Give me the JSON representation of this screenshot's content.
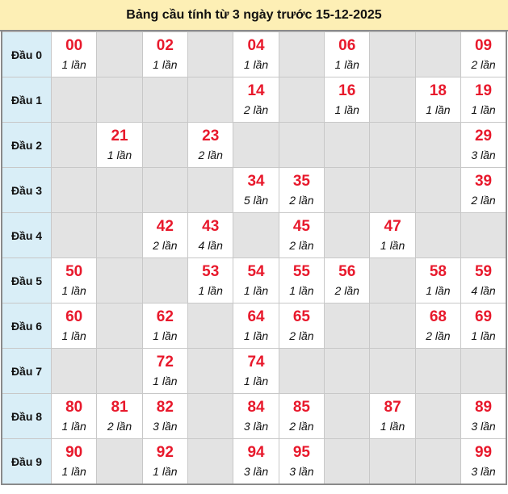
{
  "title": "Bảng cầu tính từ 3 ngày trước 15-12-2025",
  "colors": {
    "header_bg": "#fdefb5",
    "row_head_bg": "#d9eef7",
    "empty_bg": "#e3e3e3",
    "number": "#e8192c"
  },
  "rows": [
    {
      "label": "Đầu 0",
      "cells": [
        {
          "num": "00",
          "count": "1 lần"
        },
        null,
        {
          "num": "02",
          "count": "1 lần"
        },
        null,
        {
          "num": "04",
          "count": "1 lần"
        },
        null,
        {
          "num": "06",
          "count": "1 lần"
        },
        null,
        null,
        {
          "num": "09",
          "count": "2 lần"
        }
      ]
    },
    {
      "label": "Đầu 1",
      "cells": [
        null,
        null,
        null,
        null,
        {
          "num": "14",
          "count": "2 lần"
        },
        null,
        {
          "num": "16",
          "count": "1 lần"
        },
        null,
        {
          "num": "18",
          "count": "1 lần"
        },
        {
          "num": "19",
          "count": "1 lần"
        }
      ]
    },
    {
      "label": "Đầu 2",
      "cells": [
        null,
        {
          "num": "21",
          "count": "1 lần"
        },
        null,
        {
          "num": "23",
          "count": "2 lần"
        },
        null,
        null,
        null,
        null,
        null,
        {
          "num": "29",
          "count": "3 lần"
        }
      ]
    },
    {
      "label": "Đầu 3",
      "cells": [
        null,
        null,
        null,
        null,
        {
          "num": "34",
          "count": "5 lần"
        },
        {
          "num": "35",
          "count": "2 lần"
        },
        null,
        null,
        null,
        {
          "num": "39",
          "count": "2 lần"
        }
      ]
    },
    {
      "label": "Đầu 4",
      "cells": [
        null,
        null,
        {
          "num": "42",
          "count": "2 lần"
        },
        {
          "num": "43",
          "count": "4 lần"
        },
        null,
        {
          "num": "45",
          "count": "2 lần"
        },
        null,
        {
          "num": "47",
          "count": "1 lần"
        },
        null,
        null
      ]
    },
    {
      "label": "Đầu 5",
      "cells": [
        {
          "num": "50",
          "count": "1 lần"
        },
        null,
        null,
        {
          "num": "53",
          "count": "1 lần"
        },
        {
          "num": "54",
          "count": "1 lần"
        },
        {
          "num": "55",
          "count": "1 lần"
        },
        {
          "num": "56",
          "count": "2 lần"
        },
        null,
        {
          "num": "58",
          "count": "1 lần"
        },
        {
          "num": "59",
          "count": "4 lần"
        }
      ]
    },
    {
      "label": "Đầu 6",
      "cells": [
        {
          "num": "60",
          "count": "1 lần"
        },
        null,
        {
          "num": "62",
          "count": "1 lần"
        },
        null,
        {
          "num": "64",
          "count": "1 lần"
        },
        {
          "num": "65",
          "count": "2 lần"
        },
        null,
        null,
        {
          "num": "68",
          "count": "2 lần"
        },
        {
          "num": "69",
          "count": "1 lần"
        }
      ]
    },
    {
      "label": "Đầu 7",
      "cells": [
        null,
        null,
        {
          "num": "72",
          "count": "1 lần"
        },
        null,
        {
          "num": "74",
          "count": "1 lần"
        },
        null,
        null,
        null,
        null,
        null
      ]
    },
    {
      "label": "Đầu 8",
      "cells": [
        {
          "num": "80",
          "count": "1 lần"
        },
        {
          "num": "81",
          "count": "2 lần"
        },
        {
          "num": "82",
          "count": "3 lần"
        },
        null,
        {
          "num": "84",
          "count": "3 lần"
        },
        {
          "num": "85",
          "count": "2 lần"
        },
        null,
        {
          "num": "87",
          "count": "1 lần"
        },
        null,
        {
          "num": "89",
          "count": "3 lần"
        }
      ]
    },
    {
      "label": "Đầu 9",
      "cells": [
        {
          "num": "90",
          "count": "1 lần"
        },
        null,
        {
          "num": "92",
          "count": "1 lần"
        },
        null,
        {
          "num": "94",
          "count": "3 lần"
        },
        {
          "num": "95",
          "count": "3 lần"
        },
        null,
        null,
        null,
        {
          "num": "99",
          "count": "3 lần"
        }
      ]
    }
  ]
}
